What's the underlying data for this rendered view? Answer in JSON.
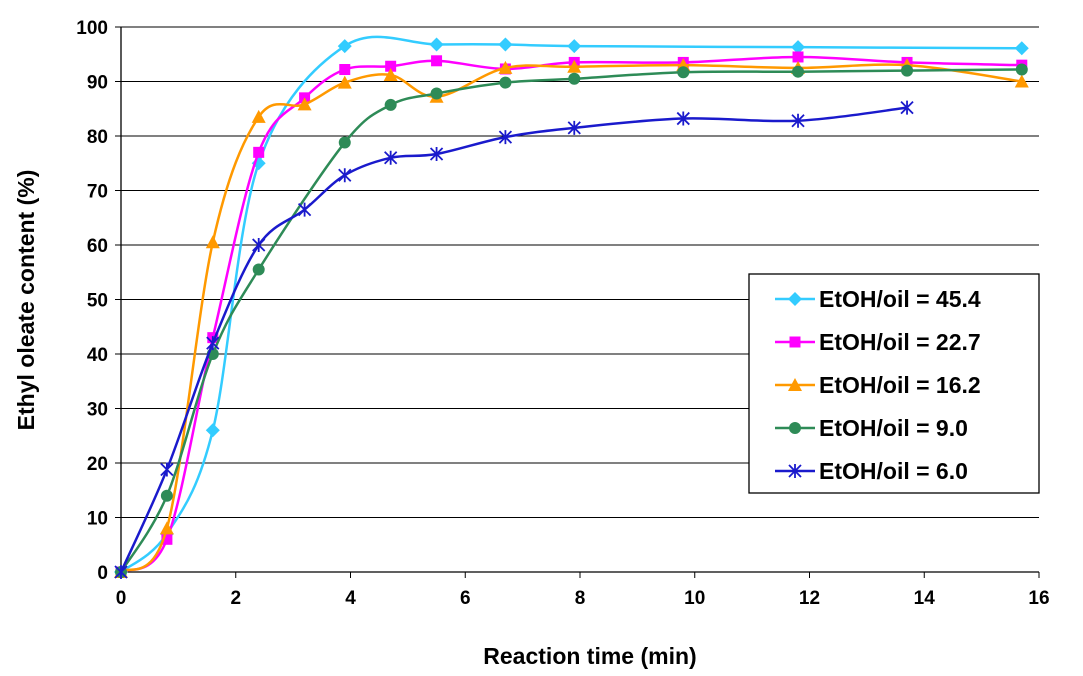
{
  "chart_data": {
    "type": "line",
    "xlabel": "Reaction time (min)",
    "ylabel": "Ethyl oleate content (%)",
    "xlim": [
      0,
      16
    ],
    "ylim": [
      0,
      100
    ],
    "xticks": [
      0,
      2,
      4,
      6,
      8,
      10,
      12,
      14,
      16
    ],
    "yticks": [
      0,
      10,
      20,
      30,
      40,
      50,
      60,
      70,
      80,
      90,
      100
    ],
    "grid": "horizontal",
    "legend_position": "right",
    "series": [
      {
        "name": "EtOH/oil = 45.4",
        "color": "#33ccff",
        "marker": "diamond",
        "x": [
          0,
          0.8,
          1.6,
          2.4,
          3.9,
          5.5,
          6.7,
          7.9,
          11.8,
          15.7
        ],
        "y": [
          0,
          7,
          26,
          75,
          96.5,
          96.8,
          96.8,
          96.5,
          96.3,
          96.1
        ]
      },
      {
        "name": "EtOH/oil = 22.7",
        "color": "#ff00ff",
        "marker": "square",
        "x": [
          0,
          0.8,
          1.6,
          2.4,
          3.2,
          3.9,
          4.7,
          5.5,
          6.7,
          7.9,
          9.8,
          11.8,
          13.7,
          15.7
        ],
        "y": [
          0,
          6,
          43,
          77,
          87,
          92.2,
          92.8,
          93.8,
          92.3,
          93.5,
          93.5,
          94.5,
          93.5,
          93
        ]
      },
      {
        "name": "EtOH/oil = 16.2",
        "color": "#ff9900",
        "marker": "triangle",
        "x": [
          0,
          0.8,
          1.6,
          2.4,
          3.2,
          3.9,
          4.7,
          5.5,
          6.7,
          7.9,
          9.8,
          11.8,
          13.7,
          15.7
        ],
        "y": [
          0,
          8,
          60.5,
          83.5,
          85.8,
          89.8,
          91.2,
          87.2,
          92.5,
          92.7,
          93,
          92.5,
          93,
          90
        ]
      },
      {
        "name": "EtOH/oil = 9.0",
        "color": "#2e8b57",
        "marker": "circle",
        "x": [
          0,
          0.8,
          1.6,
          2.4,
          3.9,
          4.7,
          5.5,
          6.7,
          7.9,
          9.8,
          11.8,
          13.7,
          15.7
        ],
        "y": [
          0,
          14,
          40,
          55.5,
          78.8,
          85.7,
          87.8,
          89.8,
          90.5,
          91.7,
          91.8,
          92,
          92.2
        ]
      },
      {
        "name": "EtOH/oil = 6.0",
        "color": "#1a1acc",
        "marker": "star",
        "x": [
          0,
          0.8,
          1.6,
          2.4,
          3.2,
          3.9,
          4.7,
          5.5,
          6.7,
          7.9,
          9.8,
          11.8,
          13.7
        ],
        "y": [
          0,
          18.8,
          42,
          60,
          66.5,
          72.8,
          76,
          76.7,
          79.8,
          81.5,
          83.2,
          82.8,
          85.2
        ]
      }
    ]
  }
}
